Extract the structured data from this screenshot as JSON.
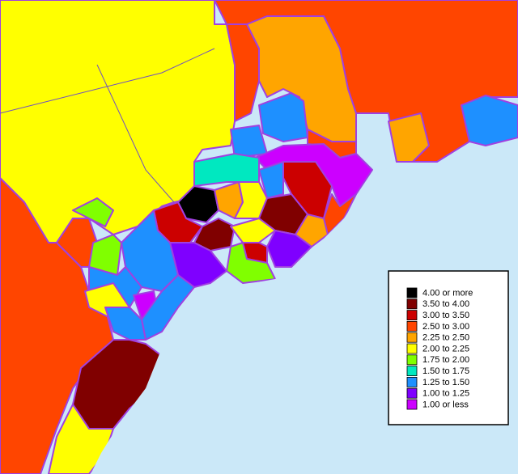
{
  "legend": {
    "items": [
      {
        "label": "4.00 or more",
        "color": "#000000"
      },
      {
        "label": "3.50 to 4.00",
        "color": "#800000"
      },
      {
        "label": "3.00 to 3.50",
        "color": "#cc0000"
      },
      {
        "label": "2.50 to 3.00",
        "color": "#ff4500"
      },
      {
        "label": "2.25 to 2.50",
        "color": "#ffa500"
      },
      {
        "label": "2.00 to 2.25",
        "color": "#ffff00"
      },
      {
        "label": "1.75 to 2.00",
        "color": "#80ff00"
      },
      {
        "label": "1.50 to 1.75",
        "color": "#00e8c0"
      },
      {
        "label": "1.25 to 1.50",
        "color": "#1e90ff"
      },
      {
        "label": "1.00 to 1.25",
        "color": "#7f00ff"
      },
      {
        "label": "1.00 or less",
        "color": "#cc00ff"
      }
    ]
  }
}
